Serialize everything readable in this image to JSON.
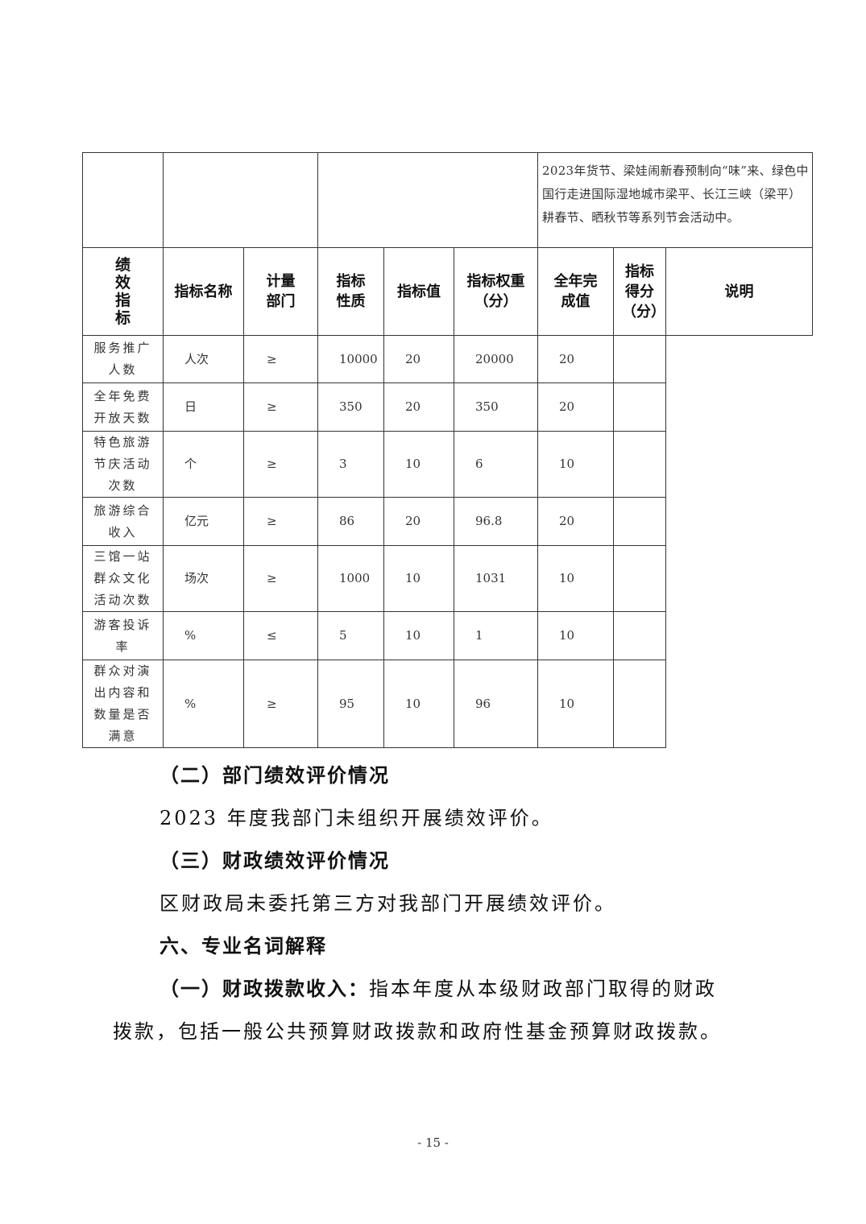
{
  "table": {
    "top_description": "2023年货节、梁娃闹新春预制向“味”来、绿色中国行走进国际湿地城市梁平、长江三峡（梁平）耕春节、晒秋节等系列节会活动中。",
    "side_label": "绩效指标",
    "headers": [
      "指标名称",
      "计量部门",
      "指标性质",
      "指标值",
      "指标权重（分）",
      "全年完成值",
      "指标得分（分）",
      "说明"
    ],
    "rows": [
      {
        "name": "服务推广人数",
        "unit": "人次",
        "nature": "≥",
        "value": "10000",
        "weight": "20",
        "actual": "20000",
        "score": "20",
        "note": ""
      },
      {
        "name": "全年免费开放天数",
        "unit": "日",
        "nature": "≥",
        "value": "350",
        "weight": "20",
        "actual": "350",
        "score": "20",
        "note": ""
      },
      {
        "name": "特色旅游节庆活动次数",
        "unit": "个",
        "nature": "≥",
        "value": "3",
        "weight": "10",
        "actual": "6",
        "score": "10",
        "note": ""
      },
      {
        "name": "旅游综合收入",
        "unit": "亿元",
        "nature": "≥",
        "value": "86",
        "weight": "20",
        "actual": "96.8",
        "score": "20",
        "note": ""
      },
      {
        "name": "三馆一站群众文化活动次数",
        "unit": "场次",
        "nature": "≥",
        "value": "1000",
        "weight": "10",
        "actual": "1031",
        "score": "10",
        "note": ""
      },
      {
        "name": "游客投诉率",
        "unit": "%",
        "nature": "≤",
        "value": "5",
        "weight": "10",
        "actual": "1",
        "score": "10",
        "note": ""
      },
      {
        "name": "群众对演出内容和数量是否满意",
        "unit": "%",
        "nature": "≥",
        "value": "95",
        "weight": "10",
        "actual": "96",
        "score": "10",
        "note": ""
      }
    ]
  },
  "paragraphs": {
    "h2": "（二）部门绩效评价情况",
    "p2": "2023 年度我部门未组织开展绩效评价。",
    "h3": "（三）财政绩效评价情况",
    "p3": "区财政局未委托第三方对我部门开展绩效评价。",
    "h6": "六、专业名词解释",
    "def1_term": "（一）财政拨款收入：",
    "def1_text1": "指本年度从本级财政部门取得的财政",
    "def1_text2": "拨款，包括一般公共预算财政拨款和政府性基金预算财政拨款。"
  },
  "page_number": "- 15 -"
}
